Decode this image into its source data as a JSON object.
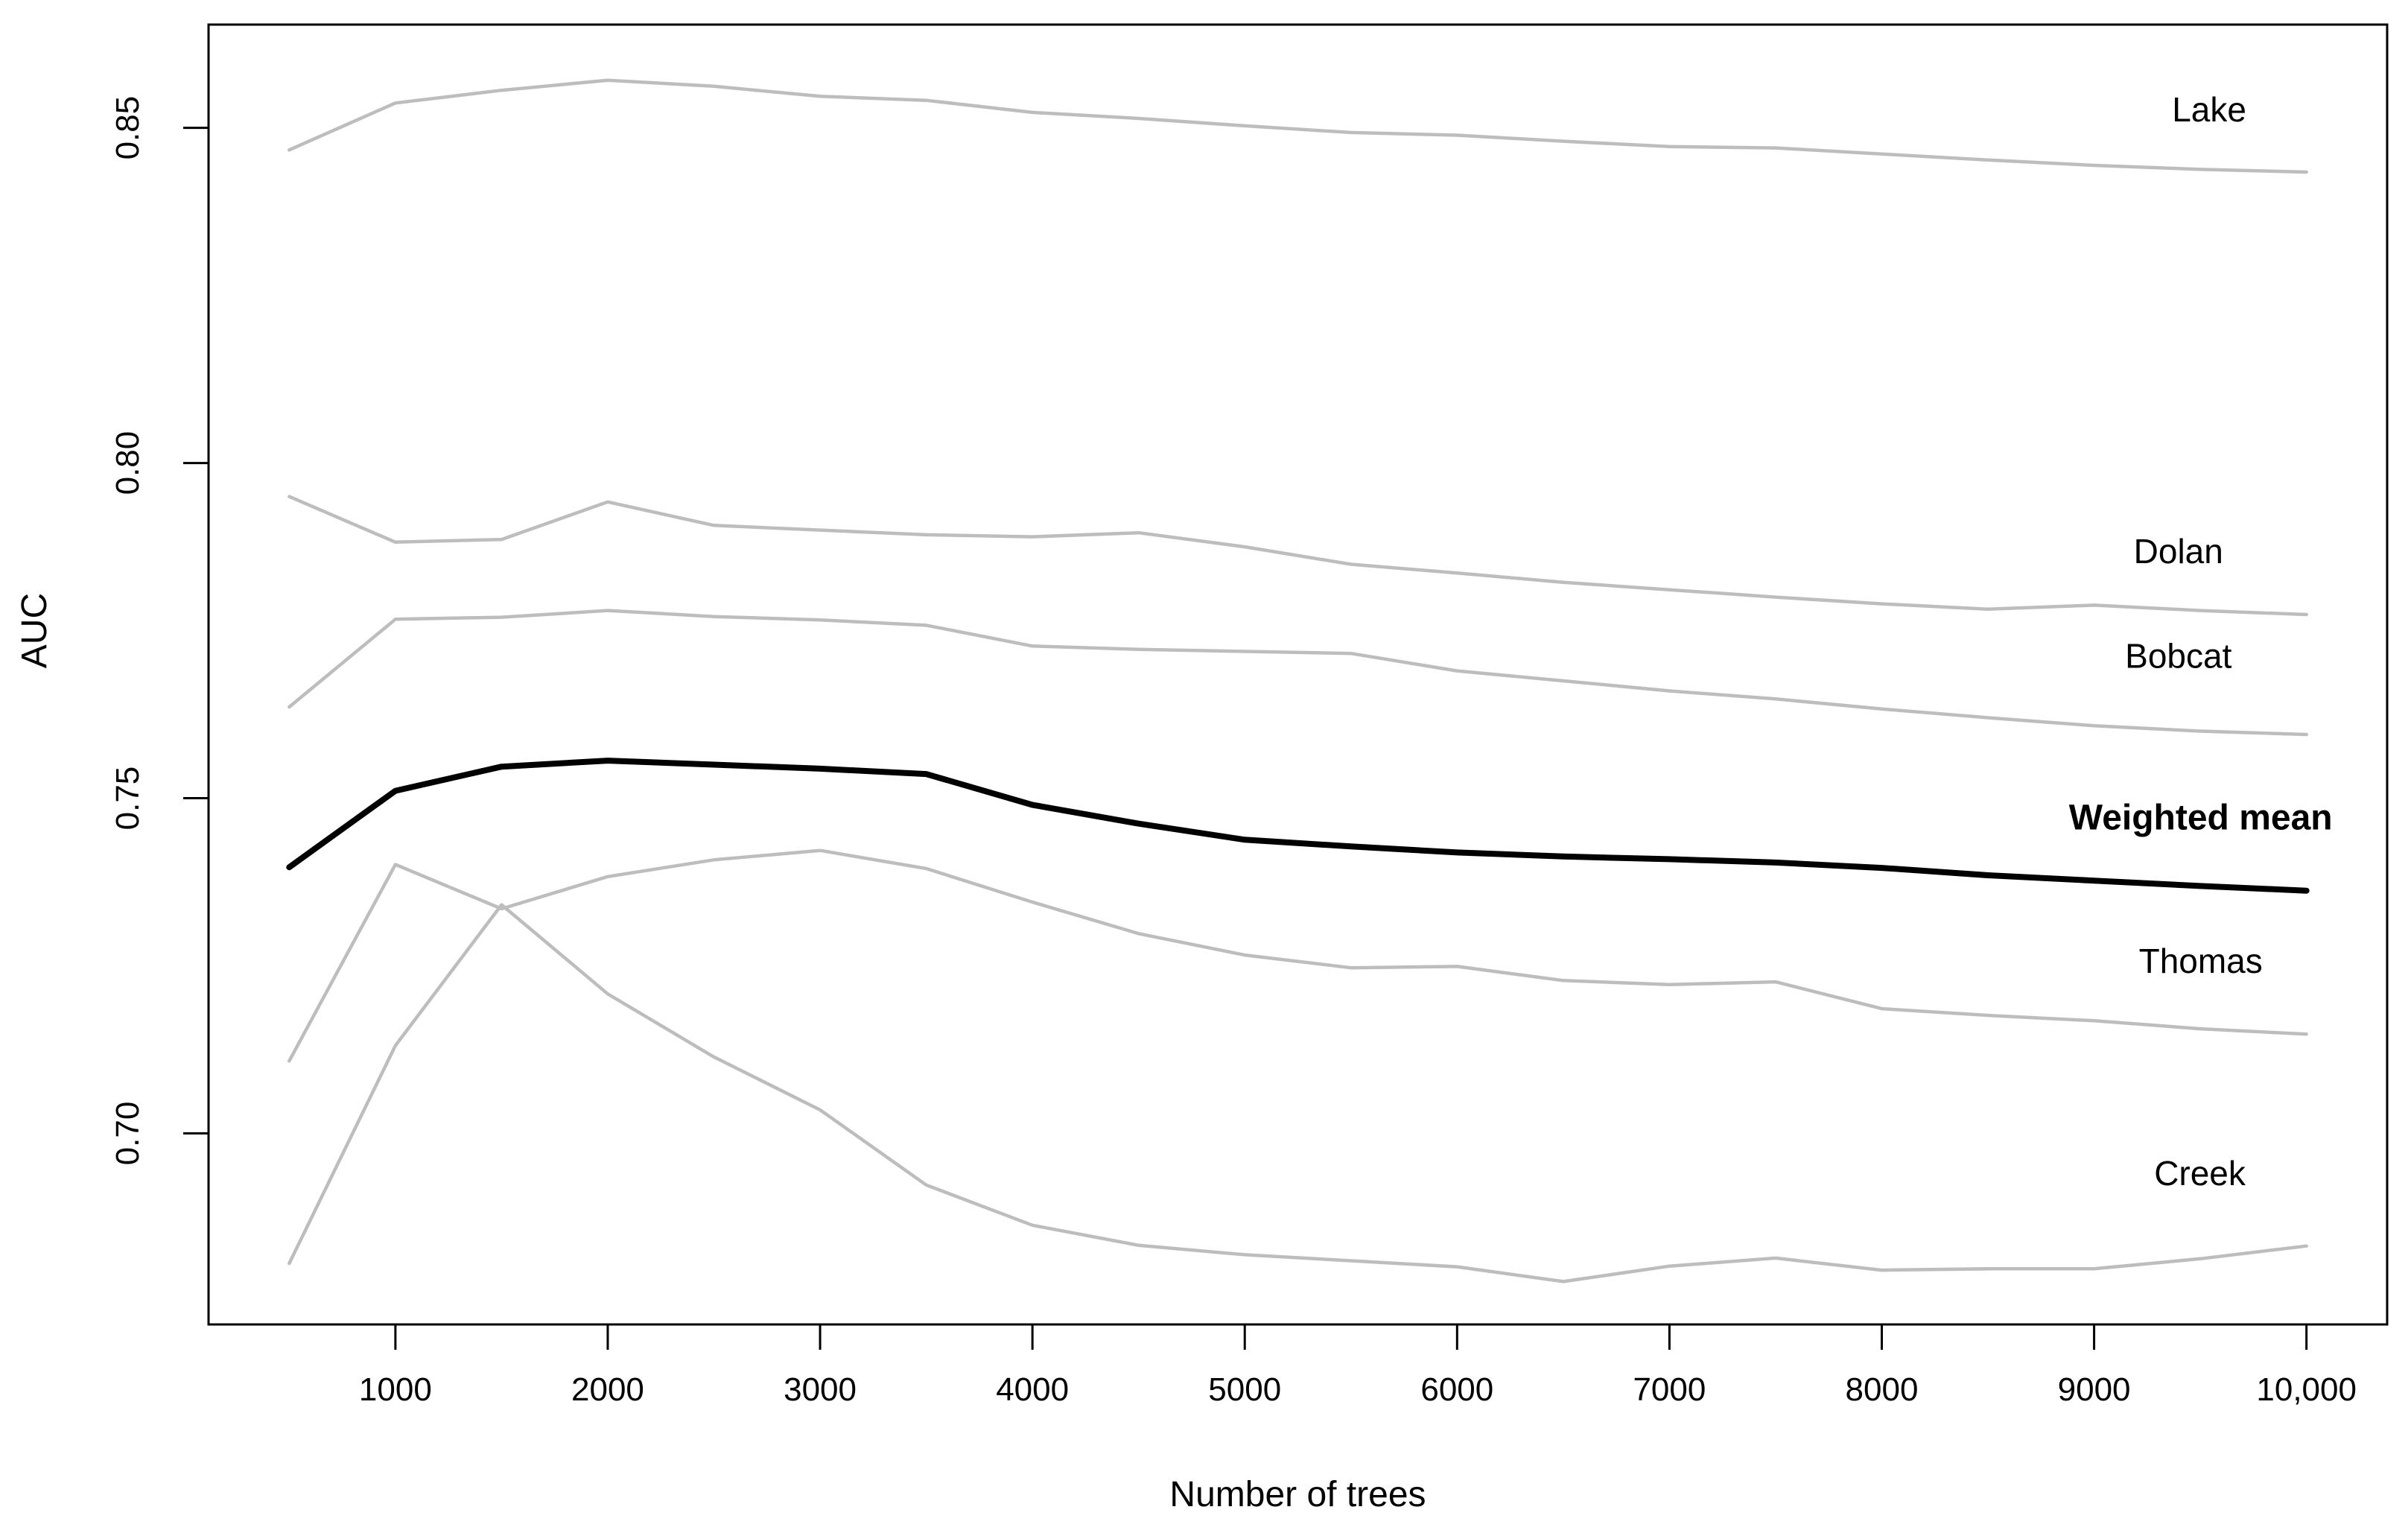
{
  "page": {
    "background": "#ffffff",
    "description": "Line chart of model AUC versus number of trees for five creeks and their weighted mean"
  },
  "chart_data": {
    "type": "line",
    "title": "",
    "xlabel": "Number of trees",
    "ylabel": "AUC",
    "grid": false,
    "legend_position": "inline-right-labels",
    "axis_color": "#000000",
    "tick_label_color": "#000000",
    "xlim": [
      120,
      10380
    ],
    "ylim": [
      0.6715,
      0.8654
    ],
    "x": [
      500,
      1000,
      1500,
      2000,
      2500,
      3000,
      3500,
      4000,
      4500,
      5000,
      5500,
      6000,
      6500,
      7000,
      7500,
      8000,
      8500,
      9000,
      9500,
      10000
    ],
    "xticks": {
      "values": [
        1000,
        2000,
        3000,
        4000,
        5000,
        6000,
        7000,
        8000,
        9000,
        10000
      ],
      "labels": [
        "1000",
        "2000",
        "3000",
        "4000",
        "5000",
        "6000",
        "7000",
        "8000",
        "9000",
        "10,000"
      ]
    },
    "yticks": {
      "values": [
        0.7,
        0.75,
        0.8,
        0.85
      ],
      "labels": [
        "0.70",
        "0.75",
        "0.80",
        "0.85"
      ]
    },
    "series": [
      {
        "name": "Lake",
        "color": "#bdbdbd",
        "stroke_width": 4.5,
        "bold": false,
        "label_color": "#6f6f6f",
        "label": {
          "x": 9542,
          "y": 0.8528
        },
        "values": [
          0.8467,
          0.8537,
          0.8556,
          0.8571,
          0.8562,
          0.8547,
          0.8541,
          0.8523,
          0.8514,
          0.8503,
          0.8493,
          0.8489,
          0.848,
          0.8472,
          0.847,
          0.8461,
          0.8452,
          0.8444,
          0.8438,
          0.8434
        ]
      },
      {
        "name": "Dolan",
        "color": "#bdbdbd",
        "stroke_width": 4.5,
        "bold": false,
        "label_color": "#6f6f6f",
        "label": {
          "x": 9397,
          "y": 0.7869
        },
        "values": [
          0.795,
          0.7882,
          0.7886,
          0.7942,
          0.7907,
          0.79,
          0.7893,
          0.789,
          0.7896,
          0.7875,
          0.7849,
          0.7836,
          0.7822,
          0.7811,
          0.78,
          0.779,
          0.7782,
          0.7788,
          0.778,
          0.7774
        ]
      },
      {
        "name": "Bobcat",
        "color": "#bdbdbd",
        "stroke_width": 4.5,
        "bold": false,
        "label_color": "#6f6f6f",
        "label": {
          "x": 9397,
          "y": 0.7713
        },
        "values": [
          0.7636,
          0.7767,
          0.777,
          0.778,
          0.7771,
          0.7766,
          0.7758,
          0.7727,
          0.7722,
          0.7719,
          0.7716,
          0.769,
          0.7675,
          0.766,
          0.7648,
          0.7633,
          0.762,
          0.7608,
          0.76,
          0.7595
        ]
      },
      {
        "name": "Thomas",
        "color": "#bdbdbd",
        "stroke_width": 4.5,
        "bold": false,
        "label_color": "#6f6f6f",
        "label": {
          "x": 9502,
          "y": 0.7258
        },
        "values": [
          0.7108,
          0.7401,
          0.7335,
          0.7383,
          0.7408,
          0.7422,
          0.7395,
          0.7345,
          0.7298,
          0.7266,
          0.7247,
          0.7249,
          0.7228,
          0.7222,
          0.7226,
          0.7186,
          0.7176,
          0.7168,
          0.7156,
          0.7148
        ]
      },
      {
        "name": "Creek",
        "color": "#bdbdbd",
        "stroke_width": 4.5,
        "bold": false,
        "label_color": "#6f6f6f",
        "label": {
          "x": 9498,
          "y": 0.6941
        },
        "values": [
          0.6806,
          0.7131,
          0.7341,
          0.7208,
          0.7114,
          0.7035,
          0.6923,
          0.6863,
          0.6833,
          0.6819,
          0.681,
          0.6801,
          0.6779,
          0.6802,
          0.6814,
          0.6796,
          0.6798,
          0.6798,
          0.6813,
          0.6832
        ]
      },
      {
        "name": "Weighted mean",
        "color": "#000000",
        "stroke_width": 8,
        "bold": true,
        "label_color": "#000000",
        "label": {
          "x": 9502,
          "y": 0.7472
        },
        "values": [
          0.7397,
          0.7511,
          0.7547,
          0.7556,
          0.755,
          0.7544,
          0.7536,
          0.749,
          0.7462,
          0.7438,
          0.7428,
          0.7419,
          0.7413,
          0.7409,
          0.7404,
          0.7396,
          0.7385,
          0.7377,
          0.7369,
          0.7362
        ]
      }
    ]
  }
}
